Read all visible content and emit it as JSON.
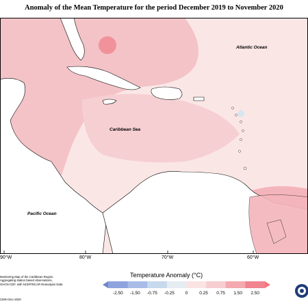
{
  "title": "Anomaly of the Mean Temperature for the period December 2019 to November 2020",
  "map": {
    "labels": {
      "atlantic": "Atlantic Ocean",
      "caribbean": "Caribbean Sea",
      "pacific": "Pacific Ocean"
    },
    "longitude_ticks": [
      "90°W",
      "80°W",
      "70°W",
      "60°W"
    ],
    "colors": {
      "land": "#ffffff",
      "coast": "#000000",
      "anom_0_25": "#fbe6e6",
      "anom_0_75": "#f8d6d8",
      "anom_1_00": "#f3bcc1",
      "anom_1_50": "#eea4ab",
      "anom_2_50": "#f08a93",
      "anom_neg": "#d6e6ee"
    }
  },
  "legend": {
    "title": "Temperature Anomaly (°C)",
    "ticks": [
      "-2.50",
      "-1.50",
      "-0.75",
      "-0.25",
      "0",
      "0.25",
      "0.75",
      "1.50",
      "2.50"
    ],
    "colors": [
      "#6f86c8",
      "#8fa3df",
      "#a9bce8",
      "#c7d9ec",
      "#e6edf2",
      "#fbe3e4",
      "#f6cdd0",
      "#f3aab0",
      "#f08590",
      "#f5727e"
    ]
  },
  "credit": {
    "lines": [
      "Monitoring Map of the Caribbean Region.",
      "Aggregating station based observations,",
      "GHCN-CDF, with NCEP/NCAR Reanalysis Data"
    ],
    "date": "CIMH Dec-2020"
  }
}
